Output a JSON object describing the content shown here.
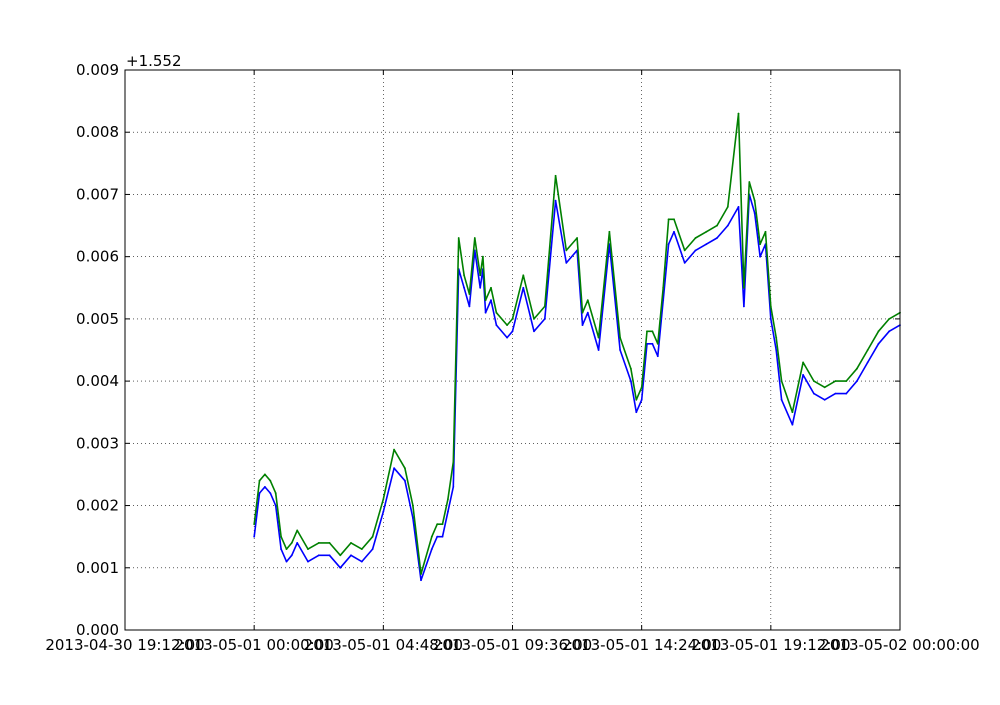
{
  "chart_data": {
    "type": "line",
    "title": "",
    "xlabel": "",
    "ylabel": "",
    "y_offset_label": "+1.552",
    "ylim": [
      0.0,
      0.009
    ],
    "yticks": [
      "0.000",
      "0.001",
      "0.002",
      "0.003",
      "0.004",
      "0.005",
      "0.006",
      "0.007",
      "0.008",
      "0.009"
    ],
    "xlim": [
      "2013-04-30 19:12:00",
      "2013-05-02 00:00:00"
    ],
    "xticks": [
      "2013-04-30 19:12:00",
      "2013-05-01 00:00:00",
      "2013-05-01 04:48:00",
      "2013-05-01 09:36:00",
      "2013-05-01 14:24:00",
      "2013-05-01 19:12:00",
      "2013-05-02 00:00:00"
    ],
    "grid": true,
    "colors": {
      "blue": "#0000ff",
      "green": "#008000"
    },
    "x": [
      "2013-05-01 00:00",
      "2013-05-01 00:12",
      "2013-05-01 00:24",
      "2013-05-01 00:36",
      "2013-05-01 00:48",
      "2013-05-01 01:00",
      "2013-05-01 01:12",
      "2013-05-01 01:24",
      "2013-05-01 01:36",
      "2013-05-01 02:00",
      "2013-05-01 02:24",
      "2013-05-01 02:48",
      "2013-05-01 03:12",
      "2013-05-01 03:36",
      "2013-05-01 04:00",
      "2013-05-01 04:24",
      "2013-05-01 04:48",
      "2013-05-01 05:12",
      "2013-05-01 05:36",
      "2013-05-01 05:54",
      "2013-05-01 06:12",
      "2013-05-01 06:36",
      "2013-05-01 06:48",
      "2013-05-01 07:00",
      "2013-05-01 07:12",
      "2013-05-01 07:24",
      "2013-05-01 07:36",
      "2013-05-01 07:48",
      "2013-05-01 08:00",
      "2013-05-01 08:12",
      "2013-05-01 08:24",
      "2013-05-01 08:30",
      "2013-05-01 08:36",
      "2013-05-01 08:48",
      "2013-05-01 09:00",
      "2013-05-01 09:24",
      "2013-05-01 09:36",
      "2013-05-01 10:00",
      "2013-05-01 10:24",
      "2013-05-01 10:48",
      "2013-05-01 11:12",
      "2013-05-01 11:36",
      "2013-05-01 12:00",
      "2013-05-01 12:12",
      "2013-05-01 12:24",
      "2013-05-01 12:48",
      "2013-05-01 13:12",
      "2013-05-01 13:36",
      "2013-05-01 14:00",
      "2013-05-01 14:12",
      "2013-05-01 14:24",
      "2013-05-01 14:36",
      "2013-05-01 14:48",
      "2013-05-01 15:00",
      "2013-05-01 15:12",
      "2013-05-01 15:24",
      "2013-05-01 15:36",
      "2013-05-01 16:00",
      "2013-05-01 16:24",
      "2013-05-01 16:48",
      "2013-05-01 17:12",
      "2013-05-01 17:36",
      "2013-05-01 18:00",
      "2013-05-01 18:12",
      "2013-05-01 18:24",
      "2013-05-01 18:36",
      "2013-05-01 18:48",
      "2013-05-01 19:00",
      "2013-05-01 19:12",
      "2013-05-01 19:24",
      "2013-05-01 19:36",
      "2013-05-01 20:00",
      "2013-05-01 20:24",
      "2013-05-01 20:48",
      "2013-05-01 21:12",
      "2013-05-01 21:36",
      "2013-05-01 22:00",
      "2013-05-01 22:24",
      "2013-05-01 22:48",
      "2013-05-01 23:12",
      "2013-05-01 23:36",
      "2013-05-02 00:00"
    ],
    "series": [
      {
        "color": "#0000ff",
        "values": [
          0.0015,
          0.0022,
          0.0023,
          0.0022,
          0.002,
          0.0013,
          0.0011,
          0.0012,
          0.0014,
          0.0011,
          0.0012,
          0.0012,
          0.001,
          0.0012,
          0.0011,
          0.0013,
          0.0019,
          0.0026,
          0.0024,
          0.0018,
          0.0008,
          0.0013,
          0.0015,
          0.0015,
          0.0019,
          0.0023,
          0.0058,
          0.0055,
          0.0052,
          0.0061,
          0.0055,
          0.0058,
          0.0051,
          0.0053,
          0.0049,
          0.0047,
          0.0048,
          0.0055,
          0.0048,
          0.005,
          0.0069,
          0.0059,
          0.0061,
          0.0049,
          0.0051,
          0.0045,
          0.0062,
          0.0045,
          0.004,
          0.0035,
          0.0037,
          0.0046,
          0.0046,
          0.0044,
          0.0053,
          0.0062,
          0.0064,
          0.0059,
          0.0061,
          0.0062,
          0.0063,
          0.0065,
          0.0068,
          0.0052,
          0.007,
          0.0067,
          0.006,
          0.0062,
          0.005,
          0.0045,
          0.0037,
          0.0033,
          0.0041,
          0.0038,
          0.0037,
          0.0038,
          0.0038,
          0.004,
          0.0043,
          0.0046,
          0.0048,
          0.0049
        ]
      },
      {
        "color": "#008000",
        "values": [
          0.0017,
          0.0024,
          0.0025,
          0.0024,
          0.0022,
          0.0015,
          0.0013,
          0.0014,
          0.0016,
          0.0013,
          0.0014,
          0.0014,
          0.0012,
          0.0014,
          0.0013,
          0.0015,
          0.0021,
          0.0029,
          0.0026,
          0.002,
          0.0009,
          0.0015,
          0.0017,
          0.0017,
          0.0021,
          0.0027,
          0.0063,
          0.0057,
          0.0054,
          0.0063,
          0.0057,
          0.006,
          0.0053,
          0.0055,
          0.0051,
          0.0049,
          0.005,
          0.0057,
          0.005,
          0.0052,
          0.0073,
          0.0061,
          0.0063,
          0.0051,
          0.0053,
          0.0047,
          0.0064,
          0.0047,
          0.0042,
          0.0037,
          0.0039,
          0.0048,
          0.0048,
          0.0046,
          0.0055,
          0.0066,
          0.0066,
          0.0061,
          0.0063,
          0.0064,
          0.0065,
          0.0068,
          0.0083,
          0.0055,
          0.0072,
          0.0069,
          0.0062,
          0.0064,
          0.0052,
          0.0047,
          0.004,
          0.0035,
          0.0043,
          0.004,
          0.0039,
          0.004,
          0.004,
          0.0042,
          0.0045,
          0.0048,
          0.005,
          0.0051
        ]
      }
    ]
  }
}
